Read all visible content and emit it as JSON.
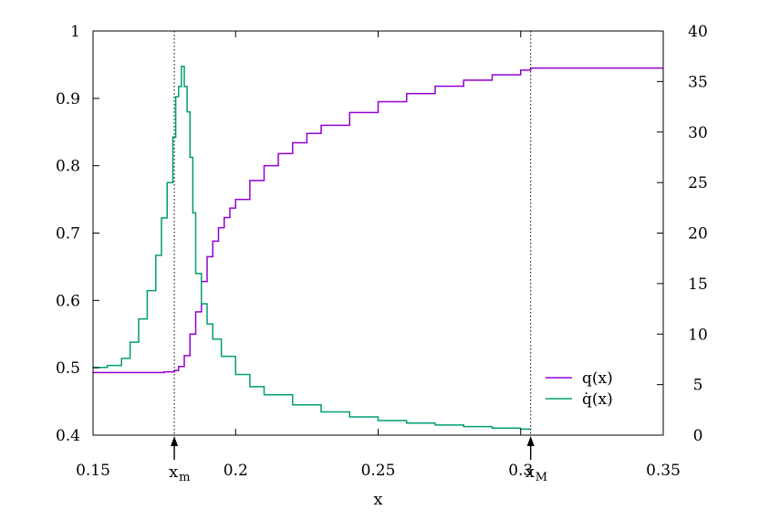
{
  "chart_data": {
    "type": "line",
    "xlabel": "x",
    "ylabel": "",
    "y2label": "",
    "xlim": [
      0.15,
      0.35
    ],
    "ylim": [
      0.4,
      1.0
    ],
    "y2lim": [
      0,
      40
    ],
    "x_ticks": [
      0.15,
      0.2,
      0.25,
      0.3,
      0.35
    ],
    "x_tick_labels": [
      "0.15",
      "0.2",
      "0.25",
      "0.3",
      "0.35"
    ],
    "y_ticks": [
      0.4,
      0.5,
      0.6,
      0.7,
      0.8,
      0.9,
      1.0
    ],
    "y_tick_labels": [
      "0.4",
      "0.5",
      "0.6",
      "0.7",
      "0.8",
      "0.9",
      "1"
    ],
    "y2_ticks": [
      0,
      5,
      10,
      15,
      20,
      25,
      30,
      35,
      40
    ],
    "y2_tick_labels": [
      "0",
      "5",
      "10",
      "15",
      "20",
      "25",
      "30",
      "35",
      "40"
    ],
    "grid": false,
    "legend_position": "bottom-right",
    "markers": [
      {
        "x": 0.1785,
        "label": "x",
        "sub": "m"
      },
      {
        "x": 0.3035,
        "label": "x",
        "sub": "M"
      }
    ],
    "series": [
      {
        "name": "q(x)",
        "name_display": "q(x)",
        "axis": "y1",
        "color": "#9400d3",
        "step": true,
        "x": [
          0.15,
          0.16,
          0.17,
          0.175,
          0.1785,
          0.18,
          0.182,
          0.184,
          0.186,
          0.188,
          0.19,
          0.192,
          0.194,
          0.196,
          0.198,
          0.2,
          0.205,
          0.21,
          0.215,
          0.22,
          0.225,
          0.23,
          0.24,
          0.25,
          0.26,
          0.27,
          0.28,
          0.29,
          0.3,
          0.3035,
          0.35
        ],
        "y": [
          0.493,
          0.493,
          0.493,
          0.494,
          0.496,
          0.502,
          0.518,
          0.55,
          0.583,
          0.628,
          0.665,
          0.688,
          0.708,
          0.723,
          0.737,
          0.75,
          0.778,
          0.8,
          0.818,
          0.834,
          0.848,
          0.86,
          0.879,
          0.895,
          0.907,
          0.918,
          0.927,
          0.935,
          0.942,
          0.945,
          0.945
        ]
      },
      {
        "name": "q̇(x)",
        "name_display": "q̇(x)",
        "axis": "y2",
        "color": "#009e73",
        "step": true,
        "x": [
          0.15,
          0.155,
          0.16,
          0.163,
          0.166,
          0.169,
          0.172,
          0.174,
          0.176,
          0.178,
          0.179,
          0.18,
          0.181,
          0.182,
          0.183,
          0.184,
          0.185,
          0.186,
          0.188,
          0.19,
          0.192,
          0.195,
          0.2,
          0.205,
          0.21,
          0.22,
          0.23,
          0.24,
          0.25,
          0.26,
          0.27,
          0.28,
          0.29,
          0.3,
          0.3035
        ],
        "y": [
          6.7,
          6.9,
          7.6,
          9.2,
          11.5,
          14.3,
          17.8,
          21.5,
          25.0,
          29.5,
          33.5,
          34.5,
          36.5,
          34.5,
          32.0,
          27.5,
          22.0,
          16.0,
          13.0,
          11.0,
          9.5,
          7.8,
          6.0,
          4.8,
          4.0,
          3.0,
          2.3,
          1.8,
          1.45,
          1.2,
          1.0,
          0.85,
          0.7,
          0.6,
          0.6
        ]
      }
    ]
  }
}
